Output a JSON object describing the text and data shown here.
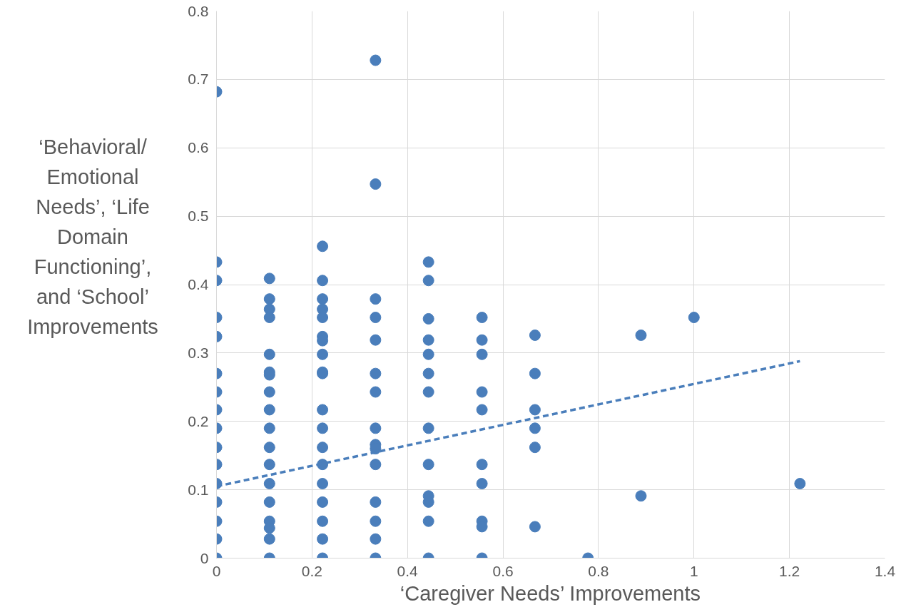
{
  "chart_data": {
    "type": "scatter",
    "xlabel": "‘Caregiver Needs’ Improvements",
    "ylabel": "‘Behavioral/ Emotional Needs’, ‘Life Domain Functioning’, and ‘School’ Improvements",
    "xlim": [
      0,
      1.4
    ],
    "ylim": [
      0,
      0.8
    ],
    "xticks": [
      0,
      0.2,
      0.4,
      0.6,
      0.8,
      1,
      1.2,
      1.4
    ],
    "yticks": [
      0,
      0.1,
      0.2,
      0.3,
      0.4,
      0.5,
      0.6,
      0.7,
      0.8
    ],
    "grid": true,
    "marker": "circle",
    "series": [
      {
        "color": "#4a7ebb",
        "x": [
          0,
          0,
          0,
          0,
          0,
          0,
          0,
          0,
          0,
          0,
          0,
          0,
          0,
          0,
          0,
          0,
          0.111,
          0.111,
          0.111,
          0.111,
          0.111,
          0.111,
          0.111,
          0.111,
          0.111,
          0.111,
          0.111,
          0.111,
          0.111,
          0.111,
          0.111,
          0.111,
          0.111,
          0.111,
          0.222,
          0.222,
          0.222,
          0.222,
          0.222,
          0.222,
          0.222,
          0.222,
          0.222,
          0.222,
          0.222,
          0.222,
          0.222,
          0.222,
          0.222,
          0.222,
          0.222,
          0.222,
          0.222,
          0.333,
          0.333,
          0.333,
          0.333,
          0.333,
          0.333,
          0.333,
          0.333,
          0.333,
          0.333,
          0.333,
          0.333,
          0.333,
          0.333,
          0.333,
          0.444,
          0.444,
          0.444,
          0.444,
          0.444,
          0.444,
          0.444,
          0.444,
          0.444,
          0.444,
          0.444,
          0.444,
          0.444,
          0.556,
          0.556,
          0.556,
          0.556,
          0.556,
          0.556,
          0.556,
          0.556,
          0.556,
          0.556,
          0.667,
          0.667,
          0.667,
          0.667,
          0.667,
          0.667,
          0.778,
          0.889,
          0.889,
          1,
          1.222
        ],
        "values": [
          0.682,
          0.433,
          0.406,
          0.352,
          0.324,
          0.27,
          0.243,
          0.217,
          0.19,
          0.162,
          0.137,
          0.109,
          0.082,
          0.054,
          0.028,
          0,
          0.409,
          0.379,
          0.364,
          0.352,
          0.298,
          0.272,
          0.268,
          0.243,
          0.217,
          0.19,
          0.162,
          0.137,
          0.109,
          0.082,
          0.054,
          0.044,
          0.028,
          0,
          0.456,
          0.406,
          0.379,
          0.364,
          0.352,
          0.324,
          0.318,
          0.298,
          0.272,
          0.27,
          0.217,
          0.19,
          0.162,
          0.137,
          0.109,
          0.082,
          0.054,
          0.028,
          0,
          0.728,
          0.547,
          0.379,
          0.352,
          0.319,
          0.27,
          0.243,
          0.19,
          0.166,
          0.16,
          0.137,
          0.082,
          0.054,
          0.028,
          0,
          0.433,
          0.406,
          0.35,
          0.319,
          0.298,
          0.27,
          0.243,
          0.19,
          0.137,
          0.091,
          0.082,
          0.054,
          0,
          0.352,
          0.319,
          0.298,
          0.243,
          0.217,
          0.137,
          0.109,
          0.054,
          0.046,
          0,
          0.326,
          0.27,
          0.217,
          0.19,
          0.162,
          0.046,
          0,
          0.326,
          0.091,
          0.352,
          0.109
        ]
      },
      {
        "type": "line",
        "color": "#4a7ebb",
        "line_style": "dashed",
        "marker": "none",
        "x": [
          0,
          1.222
        ],
        "values": [
          0.105,
          0.288
        ]
      }
    ]
  }
}
